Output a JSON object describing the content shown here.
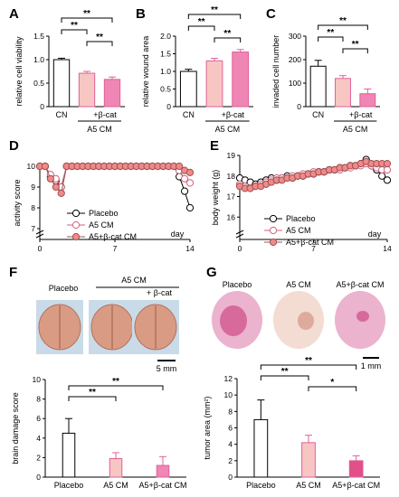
{
  "colors": {
    "axis": "#000000",
    "placebo": "#ffffff",
    "a5": "#f7c6c3",
    "a5b": "#ef86b3",
    "a5b_g": "#e34f88",
    "err": "#e0609a",
    "brain": "#d99b84",
    "tissue_bg": "#c9dbe8",
    "stain": "#e7a6c4",
    "stain_dark": "#cf4b86",
    "stain_light": "#f1d6c9"
  },
  "chart_data": [
    {
      "panel": "A",
      "type": "bar",
      "ylabel": "relative cell viability",
      "ylim": [
        0,
        1.5
      ],
      "yticks": [
        "0",
        "0.5",
        "1.0",
        "1.5"
      ],
      "categories": [
        "CN",
        "",
        ""
      ],
      "values": [
        1.0,
        0.71,
        0.58
      ],
      "errors": [
        0.03,
        0.04,
        0.05
      ],
      "group_label": "A5 CM",
      "group_sub": "+β-cat",
      "sig": [
        {
          "text": "**",
          "from": 0,
          "to": 2
        },
        {
          "text": "**",
          "from": 0,
          "to": 1
        },
        {
          "text": "**",
          "from": 1,
          "to": 2
        }
      ]
    },
    {
      "panel": "B",
      "type": "bar",
      "ylabel": "relative wound area",
      "ylim": [
        0,
        2.0
      ],
      "yticks": [
        "0",
        "0.5",
        "1.0",
        "1.5",
        "2.0"
      ],
      "categories": [
        "CN",
        "",
        ""
      ],
      "values": [
        1.0,
        1.3,
        1.55
      ],
      "errors": [
        0.06,
        0.07,
        0.07
      ],
      "group_label": "A5 CM",
      "group_sub": "+β-cat",
      "sig": [
        {
          "text": "**",
          "from": 0,
          "to": 2
        },
        {
          "text": "**",
          "from": 0,
          "to": 1
        },
        {
          "text": "**",
          "from": 1,
          "to": 2
        }
      ]
    },
    {
      "panel": "C",
      "type": "bar",
      "ylabel": "invaded cell number",
      "ylim": [
        0,
        300
      ],
      "yticks": [
        "0",
        "100",
        "200",
        "300"
      ],
      "categories": [
        "CN",
        "",
        ""
      ],
      "values": [
        172,
        120,
        55
      ],
      "errors": [
        25,
        12,
        20
      ],
      "group_label": "A5 CM",
      "group_sub": "+β-cat",
      "sig": [
        {
          "text": "**",
          "from": 0,
          "to": 2
        },
        {
          "text": "**",
          "from": 0,
          "to": 1
        },
        {
          "text": "**",
          "from": 1,
          "to": 2
        }
      ]
    },
    {
      "panel": "D",
      "type": "line",
      "ylabel": "activity score",
      "xlabel": "day",
      "ylim": [
        7,
        10
      ],
      "yticks": [
        "7",
        "8",
        "9",
        "10"
      ],
      "xticks": [
        "0",
        "7",
        "14"
      ],
      "x": [
        0,
        0.5,
        1,
        1.5,
        2,
        2.5,
        3,
        3.5,
        4,
        4.5,
        5,
        5.5,
        6,
        6.5,
        7,
        7.5,
        8,
        8.5,
        9,
        9.5,
        10,
        10.5,
        11,
        11.5,
        12,
        12.5,
        13,
        13.5,
        14
      ],
      "series": [
        {
          "name": "Placebo",
          "values": [
            10,
            10,
            9.5,
            9.3,
            9.0,
            10,
            10,
            10,
            10,
            10,
            10,
            10,
            10,
            10,
            10,
            10,
            10,
            10,
            10,
            10,
            10,
            10,
            10,
            10,
            10,
            10,
            9.5,
            8.8,
            8.0
          ]
        },
        {
          "name": "A5 CM",
          "values": [
            10,
            10,
            9.6,
            9.4,
            9.0,
            10,
            10,
            10,
            10,
            10,
            10,
            10,
            10,
            10,
            10,
            10,
            10,
            10,
            10,
            10,
            10,
            10,
            10,
            10,
            10,
            10,
            9.8,
            9.4,
            9.2
          ]
        },
        {
          "name": "A5+β-cat CM",
          "values": [
            10,
            10,
            9.4,
            9.0,
            8.7,
            10,
            10,
            10,
            10,
            10,
            10,
            10,
            10,
            10,
            10,
            10,
            10,
            10,
            10,
            10,
            10,
            10,
            10,
            10,
            10,
            10,
            10,
            9.8,
            9.7
          ]
        }
      ]
    },
    {
      "panel": "E",
      "type": "line",
      "ylabel": "body weight (g)",
      "xlabel": "day",
      "ylim": [
        15,
        19
      ],
      "yticks": [
        "16",
        "17",
        "18",
        "19"
      ],
      "xticks": [
        "0",
        "7",
        "14"
      ],
      "x": [
        0,
        0.5,
        1,
        1.5,
        2,
        2.5,
        3,
        3.5,
        4,
        4.5,
        5,
        5.5,
        6,
        6.5,
        7,
        7.5,
        8,
        8.5,
        9,
        9.5,
        10,
        10.5,
        11,
        11.5,
        12,
        12.5,
        13,
        13.5,
        14
      ],
      "series": [
        {
          "name": "Placebo",
          "values": [
            17.9,
            17.8,
            17.7,
            17.6,
            17.7,
            17.8,
            17.9,
            17.8,
            17.9,
            18.0,
            17.9,
            18.0,
            18.0,
            18.1,
            18.1,
            18.2,
            18.2,
            18.3,
            18.3,
            18.4,
            18.4,
            18.5,
            18.5,
            18.6,
            18.8,
            18.5,
            18.3,
            18.0,
            17.8
          ]
        },
        {
          "name": "A5 CM",
          "values": [
            17.6,
            17.5,
            17.4,
            17.5,
            17.6,
            17.7,
            17.8,
            17.9,
            17.9,
            17.9,
            18.0,
            18.0,
            18.1,
            18.1,
            18.2,
            18.2,
            18.2,
            18.3,
            18.3,
            18.3,
            18.4,
            18.4,
            18.5,
            18.5,
            18.6,
            18.5,
            18.4,
            18.3,
            18.3
          ]
        },
        {
          "name": "A5+β-cat CM",
          "values": [
            17.5,
            17.4,
            17.4,
            17.5,
            17.5,
            17.6,
            17.7,
            17.8,
            17.8,
            17.9,
            17.9,
            18.0,
            18.0,
            18.1,
            18.1,
            18.2,
            18.2,
            18.3,
            18.3,
            18.4,
            18.4,
            18.5,
            18.5,
            18.6,
            18.7,
            18.6,
            18.6,
            18.6,
            18.6
          ]
        }
      ]
    },
    {
      "panel": "F",
      "type": "bar",
      "ylabel": "brain damage score",
      "ylim": [
        0,
        10
      ],
      "yticks": [
        "0",
        "2",
        "4",
        "6",
        "8",
        "10"
      ],
      "categories": [
        "Placebo",
        "A5 CM",
        "A5+β-cat CM"
      ],
      "values": [
        4.5,
        1.9,
        1.2
      ],
      "errors": [
        1.5,
        0.6,
        0.9
      ],
      "sig": [
        {
          "text": "**",
          "from": 0,
          "to": 2
        },
        {
          "text": "**",
          "from": 0,
          "to": 1
        }
      ]
    },
    {
      "panel": "G",
      "type": "bar",
      "ylabel": "tumor area (mm²)",
      "ylim": [
        0,
        12
      ],
      "yticks": [
        "0",
        "2",
        "4",
        "6",
        "8",
        "10",
        "12"
      ],
      "categories": [
        "Placebo",
        "A5 CM",
        "A5+β-cat CM"
      ],
      "values": [
        7.0,
        4.2,
        2.0
      ],
      "errors": [
        2.4,
        0.9,
        0.6
      ],
      "sig": [
        {
          "text": "**",
          "from": 0,
          "to": 2
        },
        {
          "text": "**",
          "from": 0,
          "to": 1
        },
        {
          "text": "*",
          "from": 1,
          "to": 2
        }
      ]
    }
  ],
  "panel_f": {
    "photo_labels": [
      "Placebo",
      "A5 CM",
      "+ β-cat"
    ],
    "scale": "5 mm"
  },
  "panel_g": {
    "photo_labels": [
      "Placebo",
      "A5 CM",
      "A5+β-cat CM"
    ],
    "scale": "1 mm"
  }
}
